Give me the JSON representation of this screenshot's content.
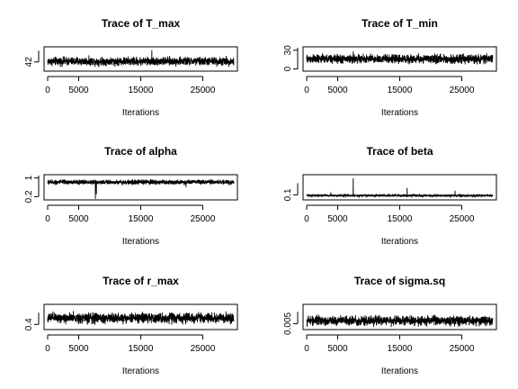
{
  "chart_data": [
    {
      "type": "line",
      "title": "Trace of T_max",
      "xlabel": "Iterations",
      "ylabel": "",
      "xlim": [
        0,
        30000
      ],
      "xticks": [
        0,
        5000,
        15000,
        25000
      ],
      "ylim": [
        40.6,
        44.4
      ],
      "yticks": [
        42
      ],
      "series": [
        {
          "mean": 42.1,
          "spread": 0.35,
          "spikes": [
            [
              16800,
              44.0
            ]
          ]
        }
      ]
    },
    {
      "type": "line",
      "title": "Trace of T_min",
      "xlabel": "Iterations",
      "ylabel": "",
      "xlim": [
        0,
        30000
      ],
      "xticks": [
        0,
        5000,
        15000,
        25000
      ],
      "ylim": [
        -2,
        34
      ],
      "yticks": [
        0,
        30
      ],
      "series": [
        {
          "mean": 16,
          "spread": 3.5,
          "spikes": [
            [
              7500,
              28
            ]
          ]
        }
      ]
    },
    {
      "type": "line",
      "title": "Trace of alpha",
      "xlabel": "Iterations",
      "ylabel": "",
      "xlim": [
        0,
        30000
      ],
      "xticks": [
        0,
        5000,
        15000,
        25000
      ],
      "ylim": [
        0.1,
        1.1
      ],
      "yticks": [
        0.2,
        1.0
      ],
      "series": [
        {
          "mean": 0.82,
          "spread": 0.05,
          "spikes": [
            [
              7700,
              0.1
            ],
            [
              7850,
              0.3
            ],
            [
              16400,
              0.7
            ],
            [
              22300,
              0.6
            ]
          ]
        }
      ]
    },
    {
      "type": "line",
      "title": "Trace of beta",
      "xlabel": "Iterations",
      "ylabel": "",
      "xlim": [
        0,
        30000
      ],
      "xticks": [
        0,
        5000,
        15000,
        25000
      ],
      "ylim": [
        0.07,
        0.24
      ],
      "yticks": [
        0.1
      ],
      "series": [
        {
          "mean": 0.095,
          "spread": 0.004,
          "spikes": [
            [
              7500,
              0.22
            ],
            [
              16200,
              0.15
            ],
            [
              3900,
              0.12
            ],
            [
              23900,
              0.13
            ]
          ]
        }
      ]
    },
    {
      "type": "line",
      "title": "Trace of r_max",
      "xlabel": "Iterations",
      "ylabel": "",
      "xlim": [
        0,
        30000
      ],
      "xticks": [
        0,
        5000,
        15000,
        25000
      ],
      "ylim": [
        0.3,
        0.85
      ],
      "yticks": [
        0.4
      ],
      "series": [
        {
          "mean": 0.55,
          "spread": 0.06,
          "spikes": []
        }
      ]
    },
    {
      "type": "line",
      "title": "Trace of sigma.sq",
      "xlabel": "Iterations",
      "ylabel": "",
      "xlim": [
        0,
        30000
      ],
      "xticks": [
        0,
        5000,
        15000,
        25000
      ],
      "ylim": [
        0.0035,
        0.0105
      ],
      "yticks": [
        0.005
      ],
      "series": [
        {
          "mean": 0.0059,
          "spread": 0.0007,
          "spikes": []
        }
      ]
    }
  ]
}
